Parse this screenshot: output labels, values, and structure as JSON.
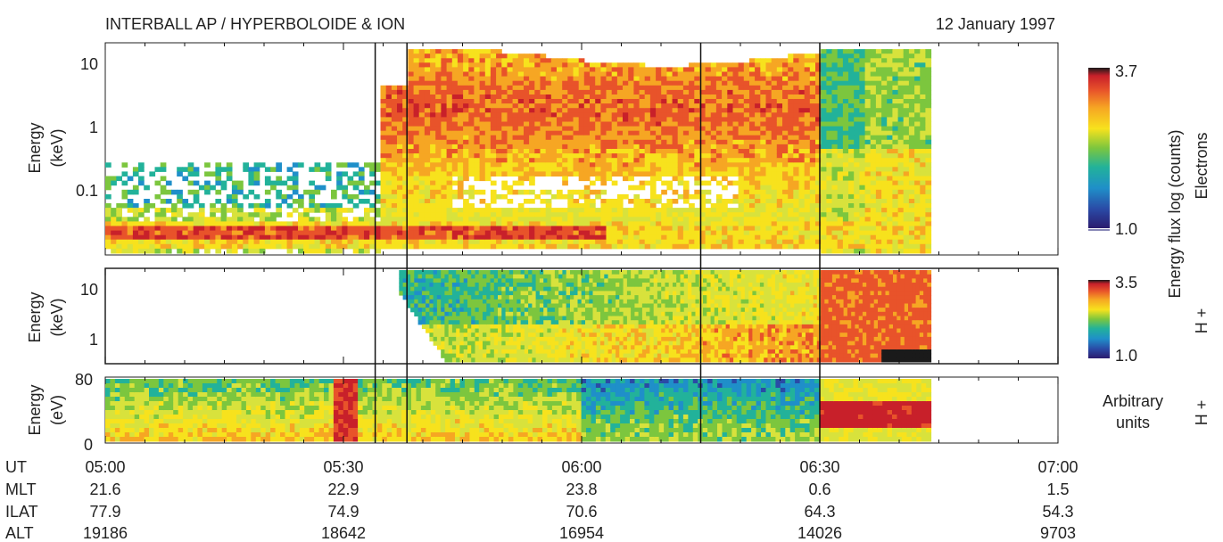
{
  "header": {
    "title": "INTERBALL AP / HYPERBOLOIDE & ION",
    "date": "12 January 1997"
  },
  "chart_data": [
    {
      "type": "heatmap",
      "panel": "electrons",
      "ylabel": [
        "Energy",
        "(keV)"
      ],
      "yscale": "log",
      "ylim": [
        0.01,
        18
      ],
      "yticks": [
        "10",
        "1",
        "0.1"
      ],
      "side_label": "Electrons",
      "colorbar": {
        "max": "3.7",
        "min": "1.0"
      },
      "features": [
        {
          "name": "low-energy band",
          "t_start": 0,
          "t_end": 55,
          "energy_keV": [
            0.02,
            0.035
          ],
          "level": "3.2-3.5"
        },
        {
          "name": "plasma sheet",
          "t_start": 35,
          "t_end": 95,
          "energy_keV": [
            0.1,
            10
          ],
          "level": "2.8-3.3"
        },
        {
          "name": "boundary layer",
          "t_start": 90,
          "t_end": 101,
          "energy_keV": [
            0.02,
            15
          ],
          "level": "2.0-2.6"
        }
      ]
    },
    {
      "type": "heatmap",
      "panel": "ions",
      "ylabel": [
        "Energy",
        "(keV)"
      ],
      "yscale": "log",
      "yticks": [
        "10",
        "1"
      ],
      "side_label": "H +",
      "colorbar": {
        "max": "3.5",
        "min": "1.0"
      },
      "features": [
        {
          "name": "dispersed ion injection",
          "t_start": 37,
          "t_end": 101,
          "level": "1.5-2.8"
        },
        {
          "name": "intense energetic ions",
          "t_start": 90,
          "t_end": 101,
          "level": "3.0-3.5"
        }
      ]
    },
    {
      "type": "heatmap",
      "panel": "ion-spectrometer",
      "ylabel": [
        "Energy",
        "(eV)"
      ],
      "ylim": [
        0,
        80
      ],
      "yticks": [
        "80",
        "40",
        "0"
      ],
      "side_label": "H +",
      "colorbar_label": [
        "Arbitrary",
        "units"
      ],
      "features": [
        {
          "name": "low energy ions",
          "t_start": 0,
          "t_end": 61,
          "level": "medium"
        },
        {
          "name": "bursts",
          "t_start": 29,
          "t_end": 33,
          "level": "high"
        },
        {
          "name": "drifting bands",
          "t_start": 60,
          "t_end": 90,
          "level": "low-medium"
        },
        {
          "name": "core",
          "t_start": 90,
          "t_end": 104,
          "energy_eV": [
            25,
            50
          ],
          "level": "high"
        }
      ]
    }
  ],
  "colorbar_title": "Energy flux log (counts)",
  "time_axis": {
    "labels": [
      "UT",
      "MLT",
      "ILAT",
      "ALT"
    ],
    "ticks": [
      {
        "ut": "05:00",
        "mlt": "21.6",
        "ilat": "77.9",
        "alt": "19186"
      },
      {
        "ut": "05:30",
        "mlt": "22.9",
        "ilat": "74.9",
        "alt": "18642"
      },
      {
        "ut": "06:00",
        "mlt": "23.8",
        "ilat": "70.6",
        "alt": "16954"
      },
      {
        "ut": "06:30",
        "mlt": "0.6",
        "ilat": "64.3",
        "alt": "14026"
      },
      {
        "ut": "07:00",
        "mlt": "1.5",
        "ilat": "54.3",
        "alt": "9703"
      }
    ],
    "markers_ut": [
      "05:34",
      "05:38",
      "06:15",
      "06:30"
    ]
  },
  "colors": {
    "scale": [
      "#2b1b6e",
      "#2a4aa6",
      "#1f8fc9",
      "#22b29a",
      "#7cc63e",
      "#d8e23c",
      "#f7e21d",
      "#f6a623",
      "#e8532a",
      "#c8202a",
      "#1a1a1a"
    ]
  }
}
